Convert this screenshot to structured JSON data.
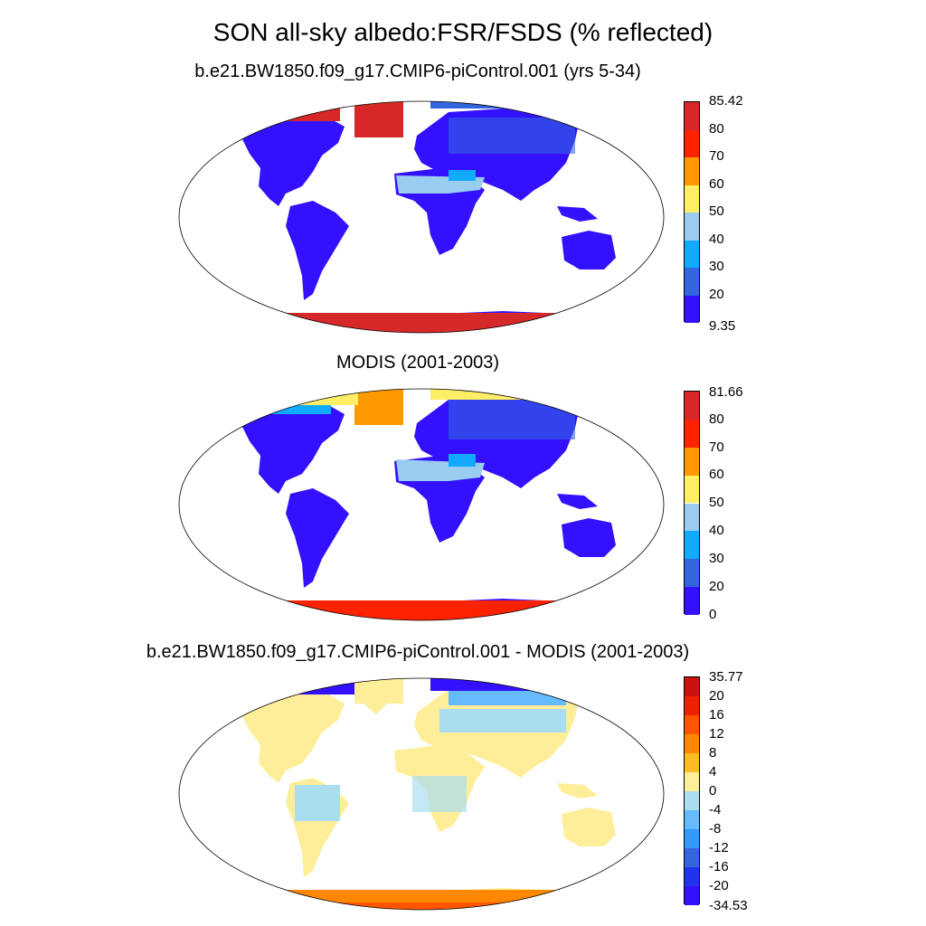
{
  "title": "SON all-sky albedo:FSR/FSDS (% reflected)",
  "panels": [
    {
      "title": "b.e21.BW1850.f09_g17.CMIP6-piControl.001 (yrs 5-34)",
      "colorbar": {
        "labels": [
          "85.42",
          "80",
          "70",
          "60",
          "50",
          "40",
          "30",
          "20",
          "9.35"
        ],
        "colors": [
          "#d62828",
          "#ff2200",
          "#ff9900",
          "#ffee66",
          "#99ccee",
          "#11aaff",
          "#3366dd",
          "#3311ff"
        ]
      }
    },
    {
      "title": "MODIS (2001-2003)",
      "colorbar": {
        "labels": [
          "81.66",
          "80",
          "70",
          "60",
          "50",
          "40",
          "30",
          "20",
          "0"
        ],
        "colors": [
          "#d62828",
          "#ff2200",
          "#ff9900",
          "#ffee66",
          "#99ccee",
          "#11aaff",
          "#3366dd",
          "#3311ff"
        ]
      }
    },
    {
      "title": "b.e21.BW1850.f09_g17.CMIP6-piControl.001 - MODIS (2001-2003)",
      "colorbar": {
        "labels": [
          "35.77",
          "20",
          "16",
          "12",
          "8",
          "4",
          "0",
          "-4",
          "-8",
          "-12",
          "-16",
          "-20",
          "-34.53"
        ],
        "colors": [
          "#cc1111",
          "#ee2200",
          "#ff5500",
          "#ff8800",
          "#ffbb22",
          "#ffee99",
          "#aaddee",
          "#66bbff",
          "#3399ff",
          "#3366dd",
          "#2233ee",
          "#3311ff"
        ]
      }
    }
  ]
}
